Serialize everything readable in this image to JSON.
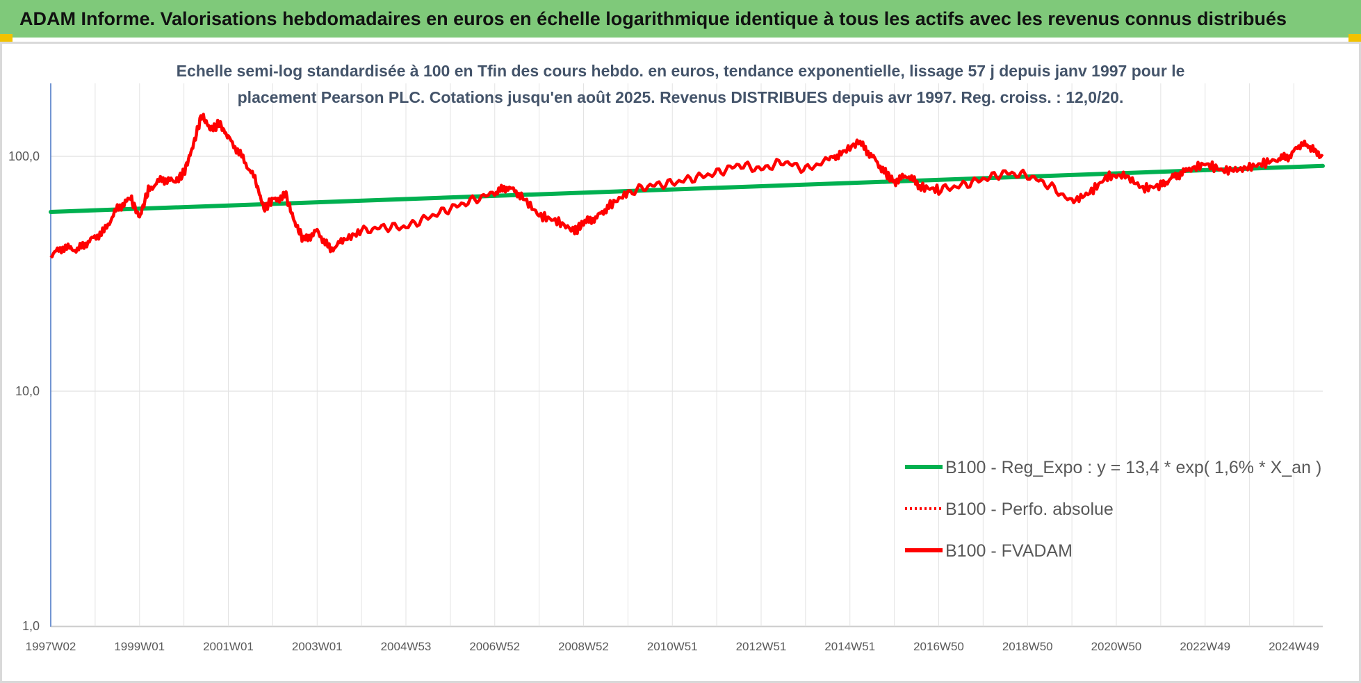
{
  "header": {
    "title": "ADAM Informe. Valorisations hebdomadaires en euros en échelle logarithmique identique à tous les actifs avec les revenus connus distribués"
  },
  "colors": {
    "banner": "#7fc97a",
    "trend": "#00b050",
    "price": "#ff0000",
    "perf": "#ff0000"
  },
  "chart_data": {
    "type": "line",
    "title_lines": [
      "Echelle semi-log standardisée à 100 en Tfin des cours hebdo. en euros, tendance exponentielle, lissage 57 j depuis janv 1997 pour le",
      "placement Pearson PLC. Cotations jusqu'en août 2025. Revenus DISTRIBUES depuis avr 1997. Reg. croiss. : 12,0/20."
    ],
    "y_scale": "log",
    "ylim": [
      1,
      180
    ],
    "y_ticks": [
      {
        "value": 1,
        "label": "1,0"
      },
      {
        "value": 10,
        "label": "10,0"
      },
      {
        "value": 100,
        "label": "100,0"
      }
    ],
    "xlim": [
      1997.0,
      2025.65
    ],
    "x_ticks": [
      {
        "t": 1997.0,
        "label": "1997W02"
      },
      {
        "t": 1999.0,
        "label": "1999W01"
      },
      {
        "t": 2001.0,
        "label": "2001W01"
      },
      {
        "t": 2003.0,
        "label": "2003W01"
      },
      {
        "t": 2005.0,
        "label": "2004W53"
      },
      {
        "t": 2007.0,
        "label": "2006W52"
      },
      {
        "t": 2009.0,
        "label": "2008W52"
      },
      {
        "t": 2011.0,
        "label": "2010W51"
      },
      {
        "t": 2013.0,
        "label": "2012W51"
      },
      {
        "t": 2015.0,
        "label": "2014W51"
      },
      {
        "t": 2017.0,
        "label": "2016W50"
      },
      {
        "t": 2019.0,
        "label": "2018W50"
      },
      {
        "t": 2021.0,
        "label": "2020W50"
      },
      {
        "t": 2023.0,
        "label": "2022W49"
      },
      {
        "t": 2025.0,
        "label": "2024W49"
      }
    ],
    "grid": "vertical",
    "legend_position": "bottom-right",
    "series": [
      {
        "name": "B100 - Reg_Expo : y = 13,4 * exp( 1,6% *  X_an )",
        "style": "solid",
        "color": "#00b050",
        "x": [
          1997.0,
          2025.65
        ],
        "y": [
          58,
          91
        ]
      },
      {
        "name": "B100 - Perfo. absolue",
        "style": "dotted",
        "color": "#ff0000",
        "x": [],
        "y": []
      },
      {
        "name": "B100 - FVADAM",
        "style": "solid",
        "color": "#ff0000",
        "x": [
          1997.0,
          1997.3,
          1997.6,
          1997.9,
          1998.2,
          1998.5,
          1998.8,
          1999.0,
          1999.2,
          1999.5,
          1999.8,
          2000.0,
          2000.2,
          2000.4,
          2000.6,
          2000.8,
          2001.0,
          2001.3,
          2001.6,
          2001.8,
          2002.0,
          2002.3,
          2002.5,
          2002.7,
          2003.0,
          2003.3,
          2003.6,
          2004.0,
          2004.5,
          2005.0,
          2005.5,
          2006.0,
          2006.5,
          2007.0,
          2007.3,
          2007.6,
          2008.0,
          2008.4,
          2008.8,
          2009.0,
          2009.3,
          2009.6,
          2010.0,
          2010.5,
          2011.0,
          2011.5,
          2012.0,
          2012.5,
          2013.0,
          2013.5,
          2014.0,
          2014.5,
          2014.8,
          2015.2,
          2015.5,
          2015.8,
          2016.0,
          2016.3,
          2016.6,
          2017.0,
          2017.5,
          2018.0,
          2018.5,
          2019.0,
          2019.5,
          2020.0,
          2020.4,
          2020.8,
          2021.2,
          2021.6,
          2022.0,
          2022.3,
          2022.6,
          2023.0,
          2023.4,
          2023.8,
          2024.2,
          2024.6,
          2024.9,
          2025.2,
          2025.4,
          2025.65
        ],
        "y": [
          38,
          41,
          40,
          44,
          48,
          60,
          66,
          55,
          72,
          80,
          78,
          85,
          110,
          150,
          130,
          138,
          120,
          100,
          80,
          60,
          65,
          68,
          52,
          44,
          48,
          40,
          44,
          48,
          50,
          50,
          55,
          60,
          65,
          70,
          74,
          68,
          56,
          53,
          48,
          52,
          55,
          62,
          70,
          75,
          77,
          81,
          85,
          92,
          88,
          95,
          88,
          96,
          103,
          115,
          100,
          85,
          78,
          83,
          74,
          72,
          75,
          80,
          85,
          83,
          75,
          64,
          70,
          82,
          83,
          73,
          75,
          82,
          87,
          93,
          87,
          88,
          92,
          97,
          100,
          115,
          107,
          100
        ]
      }
    ]
  }
}
